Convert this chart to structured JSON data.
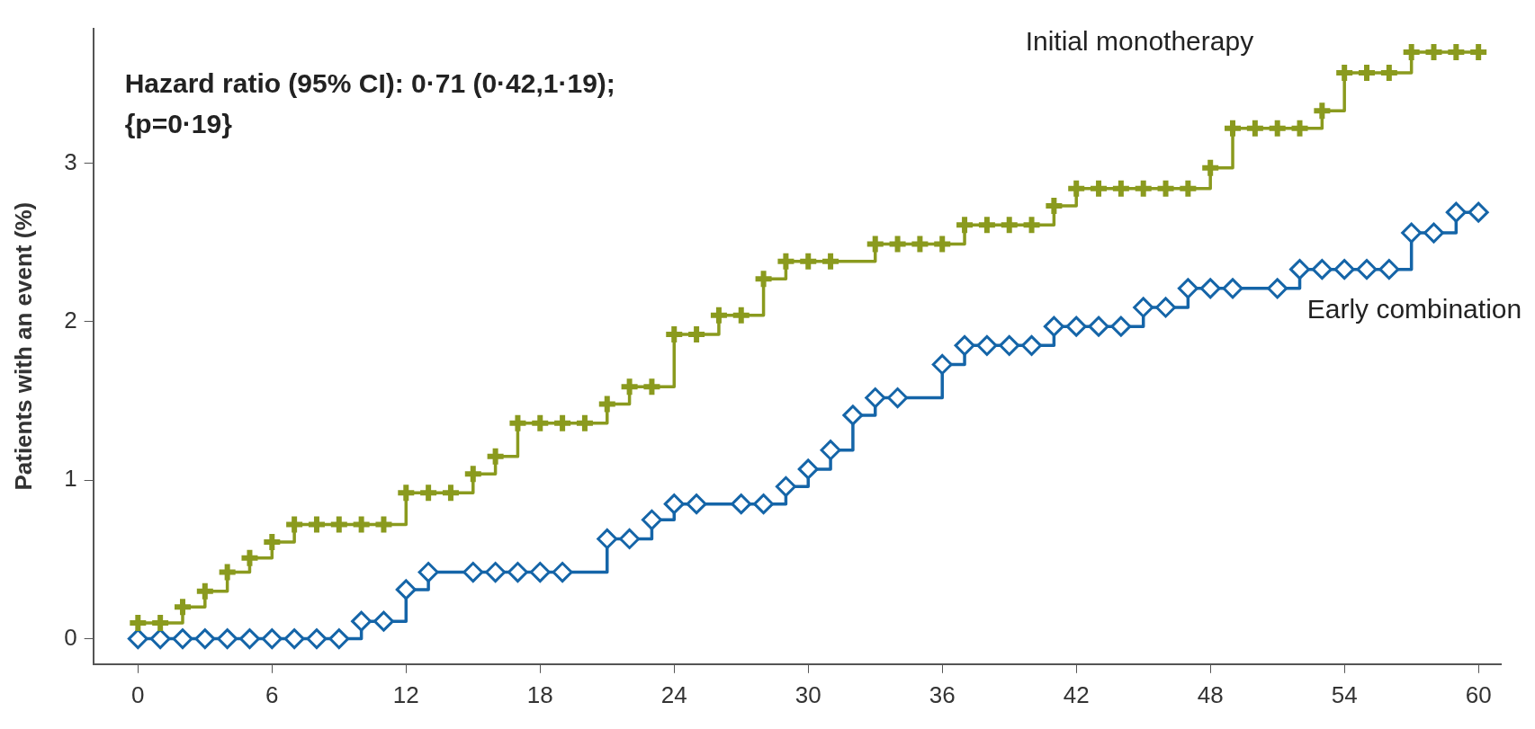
{
  "chart_data": {
    "type": "step",
    "ylabel": "Patients with an event (%)",
    "annotations": [
      "Hazard ratio (95% CI): 0·71 (0·42,1·19);\n{p=0·19}"
    ],
    "xlim": [
      -2,
      61
    ],
    "ylim": [
      -0.16,
      3.85
    ],
    "xticks": [
      0,
      6,
      12,
      18,
      24,
      30,
      36,
      42,
      48,
      54,
      60
    ],
    "yticks": [
      0,
      1,
      2,
      3
    ],
    "grid": false,
    "legend": false,
    "line_style": "solid",
    "series": [
      {
        "name": "Initial monotherapy",
        "color": "#8a9a1e",
        "marker": "cross",
        "x": [
          0,
          1,
          2,
          3,
          4,
          5,
          6,
          7,
          8,
          9,
          10,
          11,
          12,
          13,
          14,
          15,
          16,
          17,
          18,
          19,
          20,
          21,
          22,
          23,
          24,
          25,
          26,
          27,
          28,
          29,
          30,
          31,
          33,
          34,
          35,
          36,
          37,
          38,
          39,
          40,
          41,
          42,
          43,
          44,
          45,
          46,
          47,
          48,
          49,
          50,
          51,
          52,
          53,
          54,
          55,
          56,
          57,
          58,
          59,
          60
        ],
        "values": [
          0.1,
          0.1,
          0.2,
          0.3,
          0.42,
          0.51,
          0.61,
          0.72,
          0.72,
          0.72,
          0.72,
          0.72,
          0.92,
          0.92,
          0.92,
          1.04,
          1.15,
          1.36,
          1.36,
          1.36,
          1.36,
          1.48,
          1.59,
          1.59,
          1.92,
          1.92,
          2.04,
          2.04,
          2.27,
          2.38,
          2.38,
          2.38,
          2.49,
          2.49,
          2.49,
          2.49,
          2.61,
          2.61,
          2.61,
          2.61,
          2.73,
          2.84,
          2.84,
          2.84,
          2.84,
          2.84,
          2.84,
          2.97,
          3.22,
          3.22,
          3.22,
          3.22,
          3.33,
          3.57,
          3.57,
          3.57,
          3.7,
          3.7,
          3.7,
          3.7
        ]
      },
      {
        "name": "Early combination",
        "color": "#1565a8",
        "marker": "diamond",
        "x": [
          0,
          1,
          2,
          3,
          4,
          5,
          6,
          7,
          8,
          9,
          10,
          11,
          12,
          13,
          15,
          16,
          17,
          18,
          19,
          21,
          22,
          23,
          24,
          25,
          27,
          28,
          29,
          30,
          31,
          32,
          33,
          34,
          36,
          37,
          38,
          39,
          40,
          41,
          42,
          43,
          44,
          45,
          46,
          47,
          48,
          49,
          51,
          52,
          53,
          54,
          55,
          56,
          57,
          58,
          59,
          60
        ],
        "values": [
          0,
          0,
          0,
          0,
          0,
          0,
          0,
          0,
          0,
          0,
          0.11,
          0.11,
          0.31,
          0.42,
          0.42,
          0.42,
          0.42,
          0.42,
          0.42,
          0.63,
          0.63,
          0.75,
          0.85,
          0.85,
          0.85,
          0.85,
          0.96,
          1.07,
          1.19,
          1.41,
          1.52,
          1.52,
          1.73,
          1.85,
          1.85,
          1.85,
          1.85,
          1.97,
          1.97,
          1.97,
          1.97,
          2.09,
          2.09,
          2.21,
          2.21,
          2.21,
          2.21,
          2.33,
          2.33,
          2.33,
          2.33,
          2.33,
          2.56,
          2.56,
          2.69,
          2.69
        ]
      }
    ]
  }
}
